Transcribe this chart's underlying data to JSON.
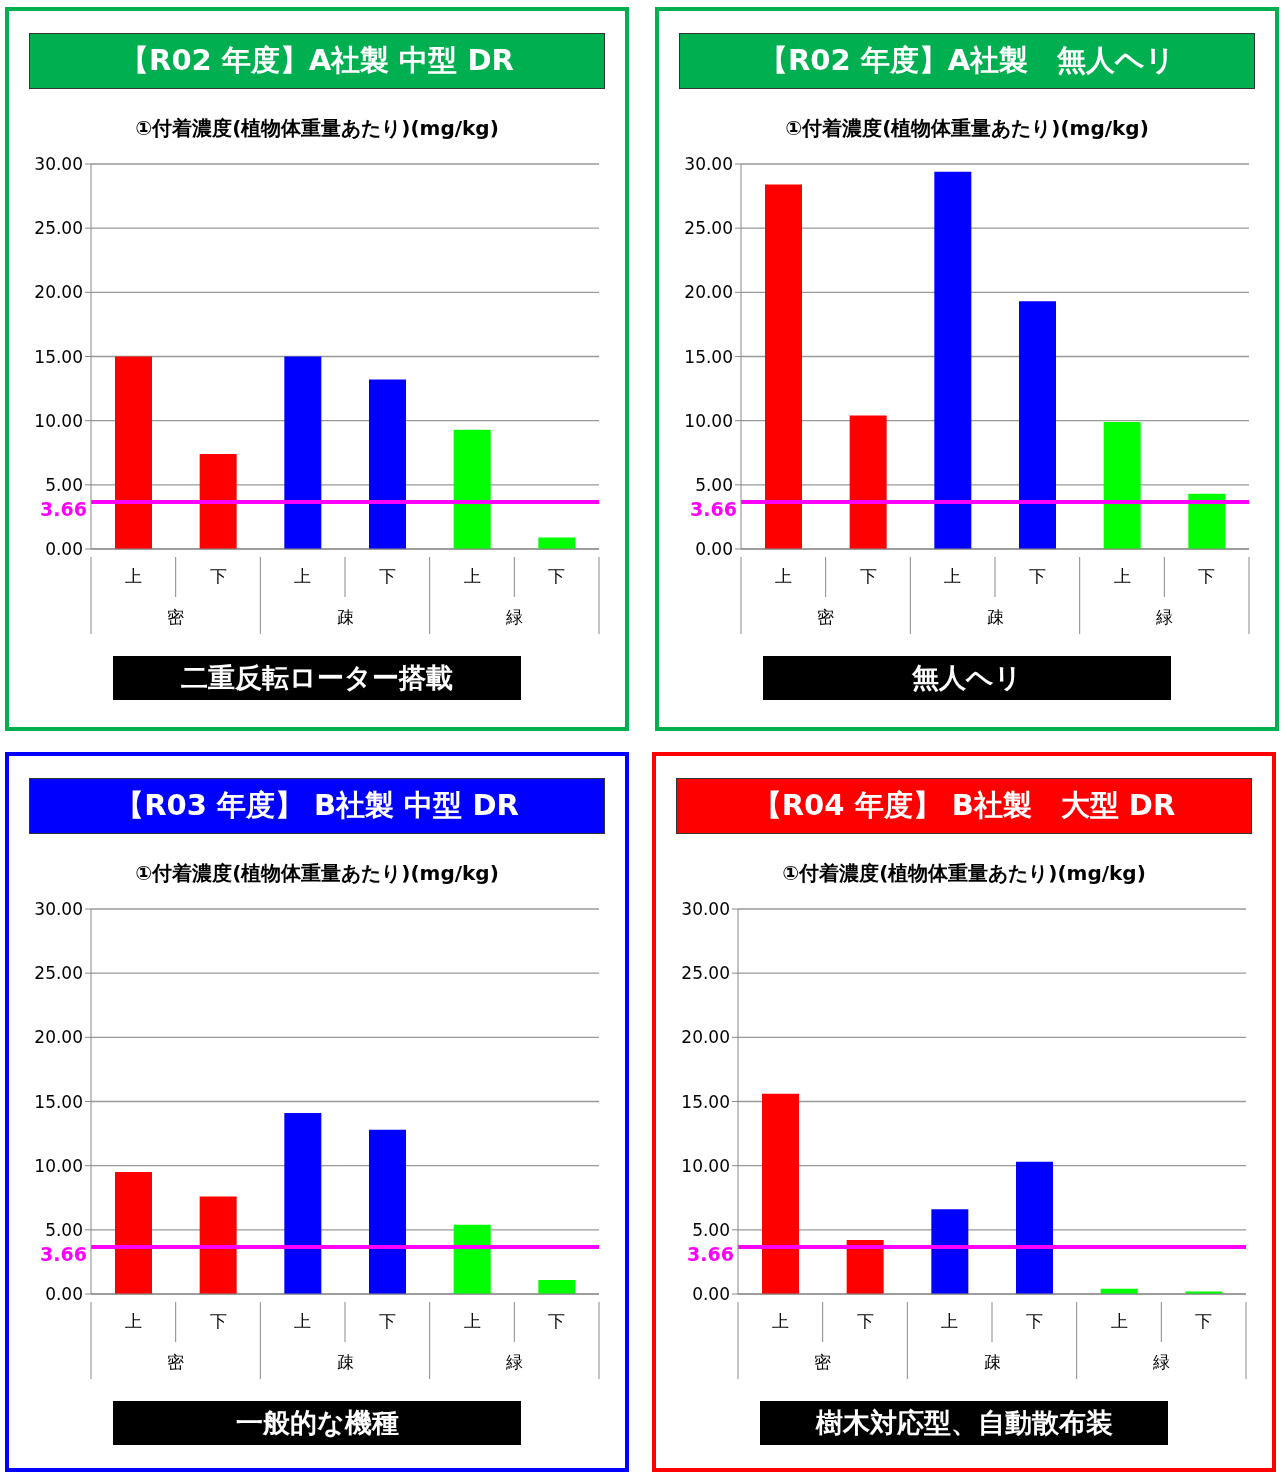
{
  "chart_data": [
    {
      "type": "bar",
      "title": "【R02 年度】A社製 中型 DR",
      "subtitle": "①付着濃度(植物体重量あたり)(mg/kg)",
      "categories": [
        "上",
        "下",
        "上",
        "下",
        "上",
        "下"
      ],
      "values": [
        15.0,
        7.4,
        15.0,
        13.2,
        9.3,
        0.9
      ],
      "colors": [
        "#ff0000",
        "#ff0000",
        "#0000ff",
        "#0000ff",
        "#00ff00",
        "#00ff00"
      ],
      "ylim": [
        0,
        30
      ],
      "yticks": [
        {
          "value": 0,
          "label": "0.00"
        },
        {
          "value": 5,
          "label": "5.00"
        },
        {
          "value": 10,
          "label": "10.00"
        },
        {
          "value": 15,
          "label": "15.00"
        },
        {
          "value": 20,
          "label": "20.00"
        },
        {
          "value": 25,
          "label": "25.00"
        },
        {
          "value": 30,
          "label": "30.00"
        }
      ],
      "grid": "y",
      "ref_lines": [
        {
          "axis": "y",
          "value": 3.66,
          "label": "3.66",
          "color": "#ff00ff"
        }
      ],
      "annotations": [
        "密",
        "疎",
        "緑",
        "二重反転ローター搭載"
      ]
    },
    {
      "type": "bar",
      "title": "【R02 年度】A社製　無人ヘリ",
      "subtitle": "①付着濃度(植物体重量あたり)(mg/kg)",
      "categories": [
        "上",
        "下",
        "上",
        "下",
        "上",
        "下"
      ],
      "values": [
        28.4,
        10.4,
        29.4,
        19.3,
        9.9,
        4.3
      ],
      "colors": [
        "#ff0000",
        "#ff0000",
        "#0000ff",
        "#0000ff",
        "#00ff00",
        "#00ff00"
      ],
      "ylim": [
        0,
        30
      ],
      "yticks": [
        {
          "value": 0,
          "label": "0.00"
        },
        {
          "value": 5,
          "label": "5.00"
        },
        {
          "value": 10,
          "label": "10.00"
        },
        {
          "value": 15,
          "label": "15.00"
        },
        {
          "value": 20,
          "label": "20.00"
        },
        {
          "value": 25,
          "label": "25.00"
        },
        {
          "value": 30,
          "label": "30.00"
        }
      ],
      "grid": "y",
      "ref_lines": [
        {
          "axis": "y",
          "value": 3.66,
          "label": "3.66",
          "color": "#ff00ff"
        }
      ],
      "annotations": [
        "密",
        "疎",
        "緑",
        "無人ヘリ"
      ]
    },
    {
      "type": "bar",
      "title": "【R03 年度】 B社製 中型 DR",
      "subtitle": "①付着濃度(植物体重量あたり)(mg/kg)",
      "categories": [
        "上",
        "下",
        "上",
        "下",
        "上",
        "下"
      ],
      "values": [
        9.5,
        7.6,
        14.1,
        12.8,
        5.4,
        1.1
      ],
      "colors": [
        "#ff0000",
        "#ff0000",
        "#0000ff",
        "#0000ff",
        "#00ff00",
        "#00ff00"
      ],
      "ylim": [
        0,
        30
      ],
      "yticks": [
        {
          "value": 0,
          "label": "0.00"
        },
        {
          "value": 5,
          "label": "5.00"
        },
        {
          "value": 10,
          "label": "10.00"
        },
        {
          "value": 15,
          "label": "15.00"
        },
        {
          "value": 20,
          "label": "20.00"
        },
        {
          "value": 25,
          "label": "25.00"
        },
        {
          "value": 30,
          "label": "30.00"
        }
      ],
      "grid": "y",
      "ref_lines": [
        {
          "axis": "y",
          "value": 3.66,
          "label": "3.66",
          "color": "#ff00ff"
        }
      ],
      "annotations": [
        "密",
        "疎",
        "緑",
        "一般的な機種"
      ]
    },
    {
      "type": "bar",
      "title": "【R04 年度】 B社製　大型 DR",
      "subtitle": "①付着濃度(植物体重量あたり)(mg/kg)",
      "categories": [
        "上",
        "下",
        "上",
        "下",
        "上",
        "下"
      ],
      "values": [
        15.6,
        4.2,
        6.6,
        10.3,
        0.4,
        0.2
      ],
      "colors": [
        "#ff0000",
        "#ff0000",
        "#0000ff",
        "#0000ff",
        "#00ff00",
        "#00ff00"
      ],
      "ylim": [
        0,
        30
      ],
      "yticks": [
        {
          "value": 0,
          "label": "0.00"
        },
        {
          "value": 5,
          "label": "5.00"
        },
        {
          "value": 10,
          "label": "10.00"
        },
        {
          "value": 15,
          "label": "15.00"
        },
        {
          "value": 20,
          "label": "20.00"
        },
        {
          "value": 25,
          "label": "25.00"
        },
        {
          "value": 30,
          "label": "30.00"
        }
      ],
      "grid": "y",
      "ref_lines": [
        {
          "axis": "y",
          "value": 3.66,
          "label": "3.66",
          "color": "#ff00ff"
        }
      ],
      "annotations": [
        "密",
        "疎",
        "緑",
        "樹木対応型、自動散布装"
      ]
    }
  ]
}
